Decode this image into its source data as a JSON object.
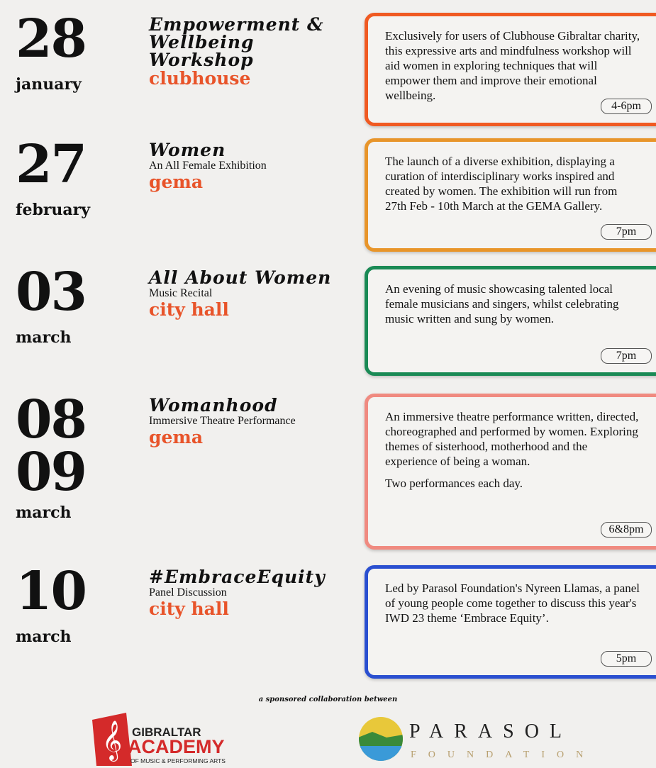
{
  "events": [
    {
      "day": "28",
      "month": "january",
      "title": "Empowerment & Wellbeing Workshop",
      "subtitle": "",
      "venue": "clubhouse",
      "description": [
        "Exclusively for users of Clubhouse Gibraltar charity, this expressive arts and mindfulness workshop will aid women in exploring techniques that will empower them and improve their emotional wellbeing."
      ],
      "time": "4-6pm",
      "color": "#f05a22"
    },
    {
      "day": "27",
      "month": "february",
      "title": "Women",
      "subtitle": "An All Female Exhibition",
      "venue": "gema",
      "description": [
        "The launch of a diverse exhibition, displaying a curation of interdisciplinary works inspired and created by women. The exhibition will run from 27th Feb - 10th March at the GEMA Gallery."
      ],
      "time": "7pm",
      "color": "#e8952a"
    },
    {
      "day": "03",
      "month": "march",
      "title": "All About Women",
      "subtitle": "Music Recital",
      "venue": "city hall",
      "description": [
        "An evening of music showcasing talented local female musicians and singers, whilst celebrating music written and sung by women."
      ],
      "time": "7pm",
      "color": "#1a8a55"
    },
    {
      "day": "08",
      "day2": "09",
      "month": "march",
      "title": "Womanhood",
      "subtitle": "Immersive Theatre Performance",
      "venue": "gema",
      "description": [
        "An immersive theatre performance written, directed, choreographed and performed by women. Exploring themes of sisterhood, motherhood and the experience of being a woman.",
        "Two performances each day."
      ],
      "time": "6&8pm",
      "color": "#f08a80"
    },
    {
      "day": "10",
      "month": "march",
      "title": "#EmbraceEquity",
      "subtitle": "Panel Discussion",
      "venue": "city hall",
      "description": [
        "Led by Parasol Foundation's Nyreen Llamas, a panel of young people come together to discuss this year's IWD 23 theme ‘Embrace Equity’."
      ],
      "time": "5pm",
      "color": "#2a4fd0"
    }
  ],
  "footer": {
    "text": "a sponsored collaboration between"
  },
  "logos": {
    "gibraltar": {
      "line1": "GIBRALTAR",
      "line2": "ACADEMY",
      "line3": "OF MUSIC & PERFORMING ARTS"
    },
    "parasol": {
      "line1": "PARASOL",
      "line2": "FOUNDATION"
    }
  }
}
